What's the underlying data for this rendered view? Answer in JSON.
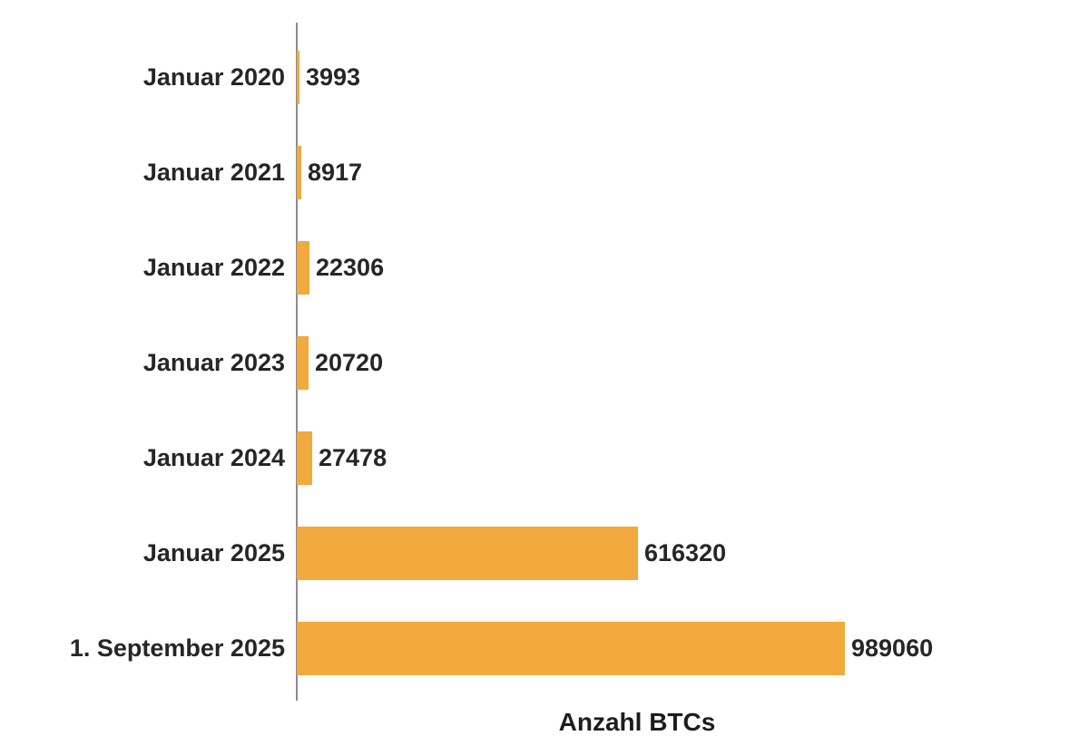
{
  "chart_data": {
    "type": "bar",
    "orientation": "horizontal",
    "title": "",
    "xlabel": "Anzahl BTCs",
    "ylabel": "",
    "categories": [
      "Januar 2020",
      "Januar 2021",
      "Januar 2022",
      "Januar 2023",
      "Januar 2024",
      "Januar 2025",
      "1. September 2025"
    ],
    "values": [
      3993,
      8917,
      22306,
      20720,
      27478,
      616320,
      989060
    ],
    "value_labels": [
      "3993",
      "8917",
      "22306",
      "20720",
      "27478",
      "616320",
      "989060"
    ],
    "xlim": [
      0,
      989060
    ],
    "grid": false,
    "legend": false,
    "colors": {
      "bar": "#F2A93D",
      "axis": "#8A8A8A",
      "text": "#262626"
    }
  }
}
